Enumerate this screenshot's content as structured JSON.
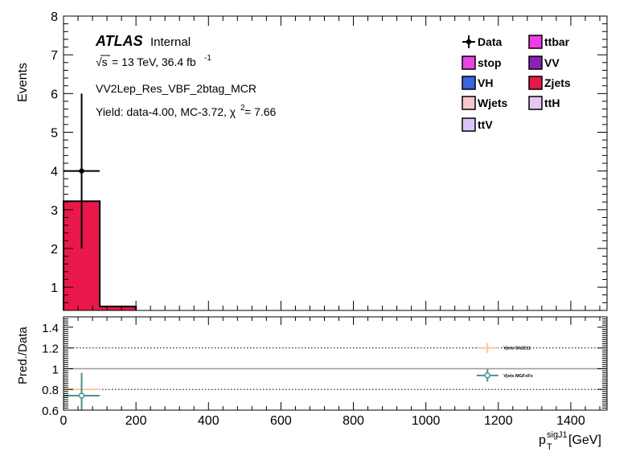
{
  "chart_data": [
    {
      "type": "bar",
      "name": "main",
      "ylabel": "Events",
      "xlim": [
        0,
        1500
      ],
      "ylim": [
        0.4,
        8
      ],
      "yticks": [
        1,
        2,
        3,
        4,
        5,
        6,
        7,
        8
      ],
      "bins": [
        {
          "low": 0,
          "high": 100,
          "value": 3.22
        },
        {
          "low": 100,
          "high": 200,
          "value": 0.5
        }
      ],
      "stack_fill": "#e8194a",
      "data_points": [
        {
          "x": 50,
          "xerr": 50,
          "y": 4.0,
          "yerr_low": 2.0,
          "yerr_high": 2.0
        }
      ],
      "annotations": {
        "atlas": "ATLAS",
        "internal": "Internal",
        "sqrt": "√s",
        "energy_text": "= 13 TeV, 36.4 fb",
        "lumi_exponent": "-1",
        "region": "VV2Lep_Res_VBF_2btag_MCR",
        "yield_prefix": "Yield: data-4.00, MC-3.72, χ",
        "yield_exponent": "2",
        "yield_suffix": " = 7.66"
      },
      "legend": {
        "placement": "top-right",
        "entries": [
          {
            "label": "Data",
            "kind": "marker",
            "color": "#000000"
          },
          {
            "label": "ttbar",
            "kind": "box",
            "color": "#ee3ce6"
          },
          {
            "label": "stop",
            "kind": "box",
            "color": "#e844e0"
          },
          {
            "label": "VV",
            "kind": "box",
            "color": "#8a20b8"
          },
          {
            "label": "VH",
            "kind": "box",
            "color": "#3c64dc"
          },
          {
            "label": "Zjets",
            "kind": "box",
            "color": "#e8194a"
          },
          {
            "label": "Wjets",
            "kind": "box",
            "color": "#f8c6cc"
          },
          {
            "label": "ttH",
            "kind": "box",
            "color": "#e6c6f6"
          },
          {
            "label": "ttV",
            "kind": "box",
            "color": "#dcc4f8"
          }
        ]
      }
    },
    {
      "type": "scatter",
      "name": "ratio",
      "ylabel": "Pred./Data",
      "xlabel_main": "p",
      "xlabel_sub": "T",
      "xlabel_sup": "sigJ1",
      "xlabel_unit": " [GeV]",
      "xlim": [
        0,
        1500
      ],
      "ylim": [
        0.6,
        1.5
      ],
      "yticks": [
        0.6,
        0.8,
        1,
        1.2,
        1.4
      ],
      "ytick_labels": [
        "0.6",
        "0.8",
        "1",
        "1.2",
        "1.4"
      ],
      "xticks": [
        0,
        200,
        400,
        600,
        800,
        1000,
        1200,
        1400
      ],
      "dotted_lines": [
        0.8,
        1.2
      ],
      "unity_line": 1,
      "series": [
        {
          "name": "Vjets Sh2211",
          "color": "#f9c89a",
          "points": [
            {
              "x": 50,
              "xerr": 50,
              "y": 0.8,
              "yerr": 0.0
            },
            {
              "x": 1170,
              "xerr": 30,
              "y": 1.2,
              "yerr": 0.05
            }
          ]
        },
        {
          "name": "Vjets MGFxFx",
          "color": "#4e8f8f",
          "points": [
            {
              "x": 50,
              "xerr": 50,
              "y": 0.74,
              "yerr": 0.22
            },
            {
              "x": 1170,
              "xerr": 30,
              "y": 0.935,
              "yerr": 0.06
            }
          ]
        }
      ]
    }
  ]
}
